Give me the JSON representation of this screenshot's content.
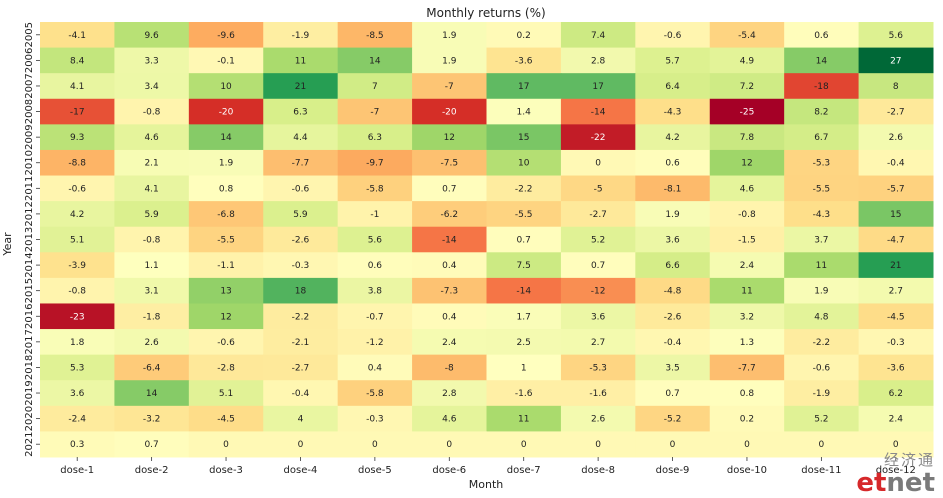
{
  "chart_data": {
    "type": "heatmap",
    "title": "Monthly returns (%)",
    "xlabel": "Month",
    "ylabel": "Year",
    "x_categories": [
      "dose-1",
      "dose-2",
      "dose-3",
      "dose-4",
      "dose-5",
      "dose-6",
      "dose-7",
      "dose-8",
      "dose-9",
      "dose-10",
      "dose-11",
      "dose-12"
    ],
    "y_categories": [
      "2005",
      "2006",
      "2007",
      "2008",
      "2009",
      "2010",
      "2011",
      "2012",
      "2013",
      "2014",
      "2015",
      "2016",
      "2017",
      "2018",
      "2019",
      "2020",
      "2021"
    ],
    "values": [
      [
        -4.1,
        9.6,
        -9.6,
        -1.9,
        -8.5,
        1.9,
        0.2,
        7.4,
        -0.6,
        -5.4,
        0.6,
        5.6
      ],
      [
        8.4,
        3.3,
        -0.1,
        11,
        14,
        1.9,
        -3.6,
        2.8,
        5.7,
        4.9,
        14,
        27
      ],
      [
        4.1,
        3.4,
        10,
        21,
        7,
        -7,
        17,
        17,
        6.4,
        7.2,
        -18,
        8
      ],
      [
        -17,
        -0.8,
        -20,
        6.3,
        -7,
        -20,
        1.4,
        -14,
        -4.3,
        -25,
        8.2,
        -2.7
      ],
      [
        9.3,
        4.6,
        14,
        4.4,
        6.3,
        12,
        15,
        -22,
        4.2,
        7.8,
        6.7,
        2.6
      ],
      [
        -8.8,
        2.1,
        1.9,
        -7.7,
        -9.7,
        -7.5,
        10,
        0,
        0.6,
        12,
        -5.3,
        -0.4
      ],
      [
        -0.6,
        4.1,
        0.8,
        -0.6,
        -5.8,
        0.7,
        -2.2,
        -5,
        -8.1,
        4.6,
        -5.5,
        -5.7
      ],
      [
        4.2,
        5.9,
        -6.8,
        5.9,
        -1,
        -6.2,
        -5.5,
        -2.7,
        1.9,
        -0.8,
        -4.3,
        15
      ],
      [
        5.1,
        -0.8,
        -5.5,
        -2.6,
        5.6,
        -14,
        0.7,
        5.2,
        3.6,
        -1.5,
        3.7,
        -4.7
      ],
      [
        -3.9,
        1.1,
        -1.1,
        -0.3,
        0.6,
        0.4,
        7.5,
        0.7,
        6.6,
        2.4,
        11,
        21
      ],
      [
        -0.8,
        3.1,
        13,
        18,
        3.8,
        -7.3,
        -14,
        -12,
        -4.8,
        11,
        1.9,
        2.7
      ],
      [
        -23,
        -1.8,
        12,
        -2.2,
        -0.7,
        0.4,
        1.7,
        3.6,
        -2.6,
        3.2,
        4.8,
        -4.5
      ],
      [
        1.8,
        2.6,
        -0.6,
        -2.1,
        -1.2,
        2.4,
        2.5,
        2.7,
        -0.4,
        1.3,
        -2.2,
        -0.3
      ],
      [
        5.3,
        -6.4,
        -2.8,
        -2.7,
        0.4,
        -8,
        1,
        -5.3,
        3.5,
        -7.7,
        -0.6,
        -3.6
      ],
      [
        3.6,
        14,
        5.1,
        -0.4,
        -5.8,
        2.8,
        -1.6,
        -1.6,
        0.7,
        0.8,
        -1.9,
        6.2
      ],
      [
        -2.4,
        -3.2,
        -4.5,
        4,
        -0.3,
        4.6,
        11,
        2.6,
        -5.2,
        0.2,
        5.2,
        2.4
      ],
      [
        0.3,
        0.7,
        0,
        0,
        0,
        0,
        0,
        0,
        0,
        0,
        0,
        0
      ]
    ],
    "colormap": "RdYlGn",
    "value_range": [
      -25,
      27
    ],
    "colorbar": false,
    "grid": false
  },
  "watermark": {
    "chinese": "经济通",
    "brand_part1": "et",
    "brand_part2": "net",
    "brand_colors": [
      "#d6282a",
      "#7a7a7a"
    ]
  }
}
